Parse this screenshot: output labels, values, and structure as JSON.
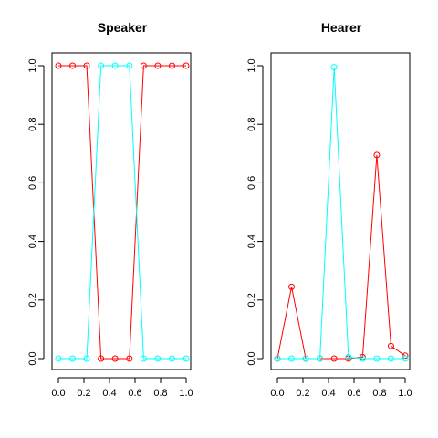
{
  "chart_data": [
    {
      "type": "line",
      "title": "Speaker",
      "xlabel": "",
      "ylabel": "",
      "xlim": [
        0,
        1
      ],
      "ylim": [
        0,
        1
      ],
      "xticks": [
        "0.0",
        "0.2",
        "0.4",
        "0.6",
        "0.8",
        "1.0"
      ],
      "yticks": [
        "0.0",
        "0.2",
        "0.4",
        "0.6",
        "0.8",
        "1.0"
      ],
      "grid": false,
      "x": [
        0,
        0.111,
        0.222,
        0.333,
        0.444,
        0.556,
        0.667,
        0.778,
        0.889,
        1.0
      ],
      "series": [
        {
          "color": "#ff0000",
          "values": [
            1,
            1,
            1,
            0,
            0,
            0,
            1,
            1,
            1,
            1
          ]
        },
        {
          "color": "#00ffff",
          "values": [
            0,
            0,
            0,
            1,
            1,
            1,
            0,
            0,
            0,
            0
          ]
        }
      ]
    },
    {
      "type": "line",
      "title": "Hearer",
      "xlabel": "",
      "ylabel": "",
      "xlim": [
        0,
        1
      ],
      "ylim": [
        0,
        1
      ],
      "xticks": [
        "0.0",
        "0.2",
        "0.4",
        "0.6",
        "0.8",
        "1.0"
      ],
      "yticks": [
        "0.0",
        "0.2",
        "0.4",
        "0.6",
        "0.8",
        "1.0"
      ],
      "grid": false,
      "x": [
        0,
        0.111,
        0.222,
        0.333,
        0.444,
        0.556,
        0.667,
        0.778,
        0.889,
        1.0
      ],
      "series": [
        {
          "color": "#ff0000",
          "values": [
            0,
            0.245,
            0,
            0,
            0,
            0,
            0.005,
            0.695,
            0.043,
            0.01
          ]
        },
        {
          "color": "#00ffff",
          "values": [
            0,
            0,
            0,
            0,
            0.995,
            0.005,
            0,
            0,
            0,
            0
          ]
        }
      ]
    }
  ]
}
